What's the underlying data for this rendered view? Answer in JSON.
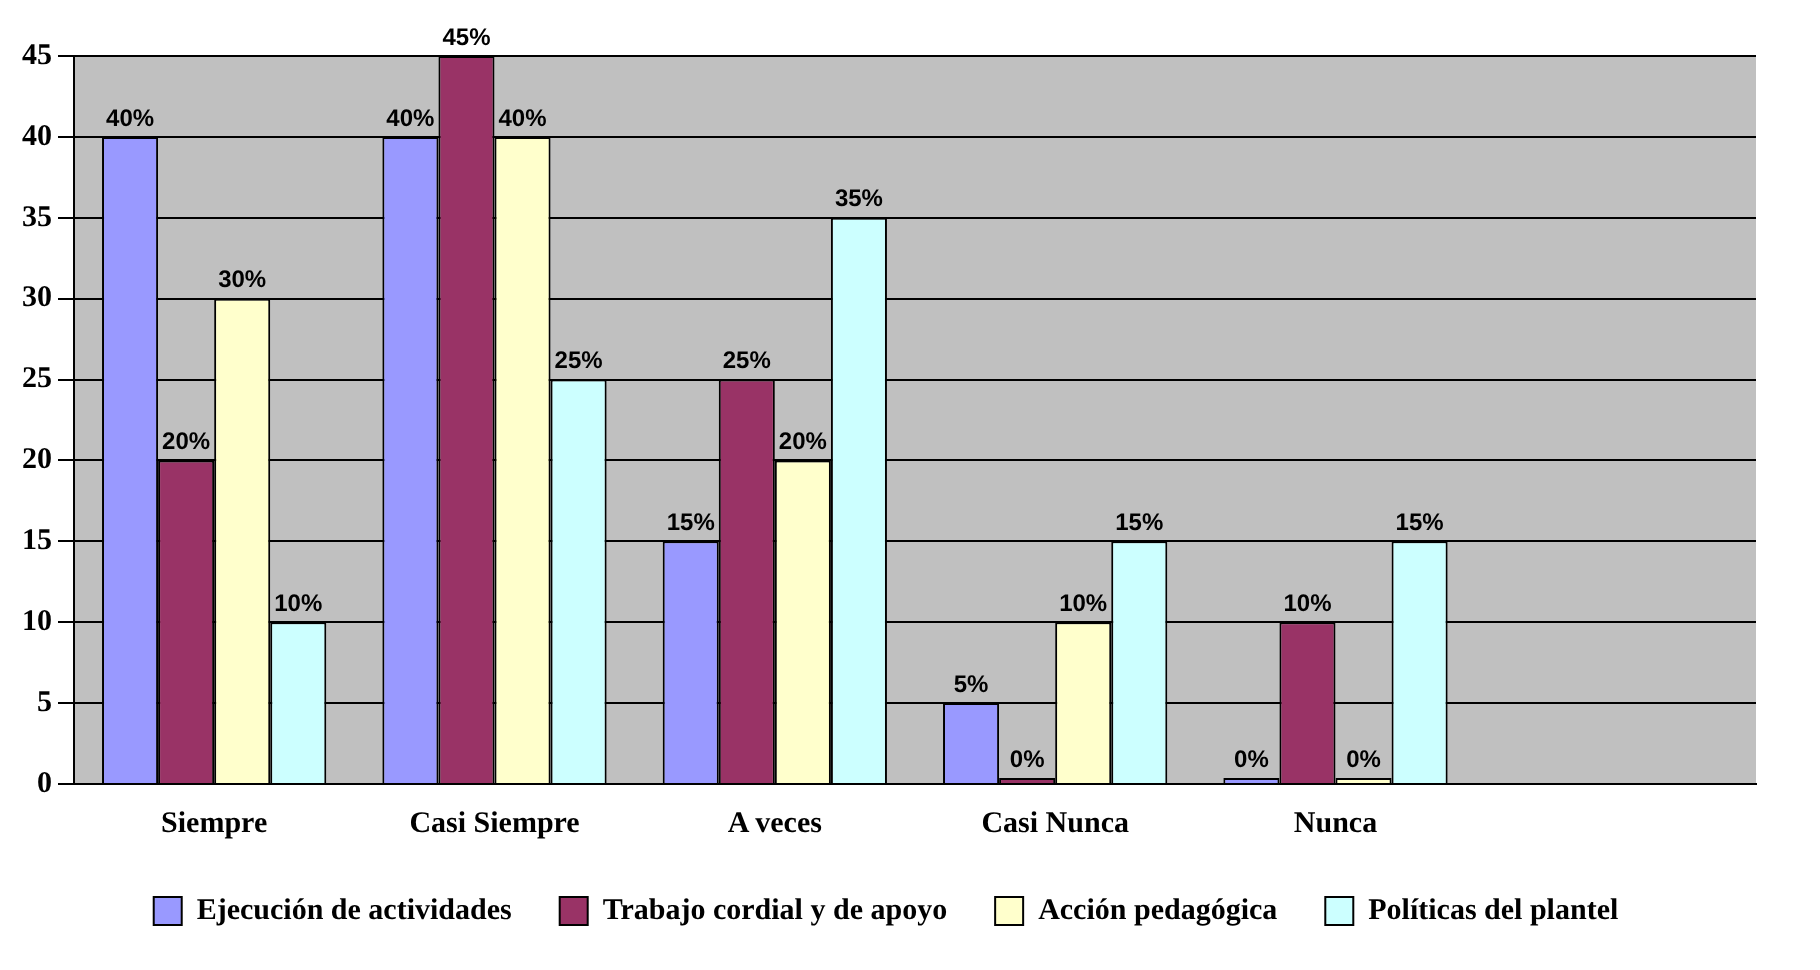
{
  "chart_data": {
    "type": "bar",
    "categories": [
      "Siempre",
      "Casi Siempre",
      "A veces",
      "Casi Nunca",
      "Nunca",
      null
    ],
    "series": [
      {
        "name": "Ejecución de actividades",
        "color": "#9999ff",
        "values": [
          40,
          40,
          15,
          5,
          0,
          null
        ],
        "value_labels": [
          "40%",
          "40%",
          "15%",
          "5%",
          "0%",
          null
        ]
      },
      {
        "name": "Trabajo cordial y de apoyo",
        "color": "#993366",
        "values": [
          20,
          45,
          25,
          0,
          10,
          null
        ],
        "value_labels": [
          "20%",
          "45%",
          "25%",
          "0%",
          "10%",
          null
        ]
      },
      {
        "name": "Acción pedagógica",
        "color": "#ffffcc",
        "values": [
          30,
          40,
          20,
          10,
          0,
          null
        ],
        "value_labels": [
          "30%",
          "40%",
          "20%",
          "10%",
          "0%",
          null
        ]
      },
      {
        "name": "Políticas del plantel",
        "color": "#ccffff",
        "values": [
          10,
          25,
          35,
          15,
          15,
          null
        ],
        "value_labels": [
          "10%",
          "25%",
          "35%",
          "15%",
          "15%",
          null
        ]
      }
    ],
    "ylim": [
      0,
      45
    ],
    "yticks": [
      0,
      5,
      10,
      15,
      20,
      25,
      30,
      35,
      40,
      45
    ],
    "grid": "y",
    "legend": "bottom"
  }
}
